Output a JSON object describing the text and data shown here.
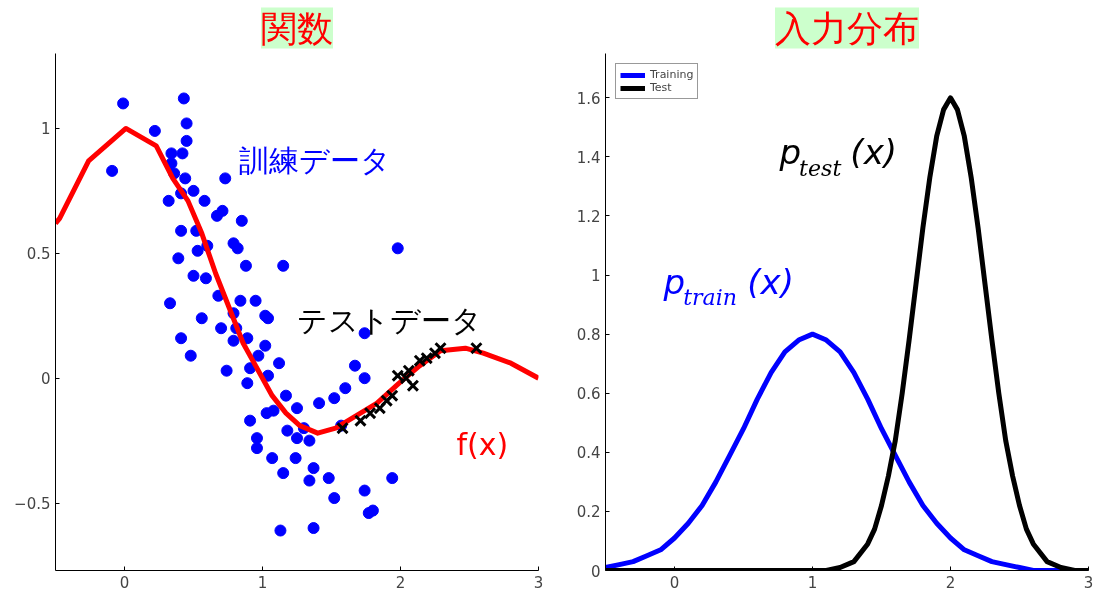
{
  "chart_data": [
    {
      "type": "scatter",
      "title": "関数",
      "xlim": [
        -0.5,
        3
      ],
      "ylim": [
        -0.77,
        1.3
      ],
      "xticks": [
        0,
        1,
        2,
        3
      ],
      "yticks": [
        -0.5,
        0,
        0.5,
        1
      ],
      "grid": false,
      "legend": false,
      "series": [
        {
          "name": "訓練データ",
          "type": "scatter",
          "marker": "circle",
          "color": "#0000ff",
          "x": [
            -0.01,
            -0.09,
            0.43,
            0.22,
            0.45,
            0.45,
            0.34,
            0.42,
            0.34,
            0.36,
            0.44,
            0.73,
            0.5,
            0.32,
            0.41,
            0.58,
            0.67,
            0.71,
            0.85,
            0.52,
            0.41,
            0.79,
            0.82,
            0.53,
            0.6,
            0.39,
            0.88,
            1.15,
            1.98,
            0.5,
            0.59,
            0.33,
            0.68,
            0.84,
            0.95,
            1.02,
            1.04,
            0.56,
            0.79,
            0.7,
            0.81,
            0.41,
            0.79,
            0.89,
            1.74,
            0.48,
            1.02,
            0.97,
            0.74,
            0.91,
            1.12,
            1.04,
            1.67,
            0.89,
            1.74,
            1.17,
            1.6,
            1.52,
            1.41,
            1.25,
            1.03,
            1.08,
            0.91,
            1.18,
            1.3,
            1.25,
            1.34,
            0.96,
            0.96,
            1.07,
            1.24,
            1.37,
            1.15,
            1.34,
            1.48,
            1.94,
            1.74,
            1.52,
            1.8,
            1.77,
            1.13,
            1.37,
            1.57
          ],
          "values": [
            1.1,
            0.83,
            1.12,
            0.99,
            1.02,
            0.95,
            0.9,
            0.9,
            0.86,
            0.82,
            0.8,
            0.8,
            0.75,
            0.71,
            0.74,
            0.71,
            0.65,
            0.67,
            0.63,
            0.59,
            0.59,
            0.54,
            0.52,
            0.51,
            0.53,
            0.48,
            0.45,
            0.45,
            0.52,
            0.41,
            0.4,
            0.3,
            0.33,
            0.31,
            0.31,
            0.25,
            0.24,
            0.24,
            0.26,
            0.2,
            0.2,
            0.16,
            0.15,
            0.16,
            0.18,
            0.09,
            0.13,
            0.09,
            0.03,
            0.04,
            0.06,
            0.01,
            0.05,
            -0.02,
            0.0,
            -0.07,
            -0.04,
            -0.08,
            -0.1,
            -0.12,
            -0.14,
            -0.13,
            -0.17,
            -0.21,
            -0.2,
            -0.24,
            -0.25,
            -0.24,
            -0.28,
            -0.32,
            -0.32,
            -0.36,
            -0.38,
            -0.41,
            -0.4,
            -0.4,
            -0.45,
            -0.48,
            -0.53,
            -0.54,
            -0.61,
            -0.6,
            -0.19
          ]
        },
        {
          "name": "f(x)",
          "type": "line",
          "line_style": "solid",
          "marker": "none",
          "color": "#ff0000",
          "x": [
            -0.5,
            -0.47,
            -0.26,
            0.01,
            0.23,
            0.35,
            0.46,
            0.56,
            0.66,
            0.76,
            0.86,
            0.97,
            1.07,
            1.17,
            1.27,
            1.4,
            1.53,
            1.68,
            1.83,
            1.99,
            2.14,
            2.29,
            2.47,
            2.6,
            2.8,
            3.0
          ],
          "values": [
            0.62,
            0.64,
            0.87,
            1.0,
            0.93,
            0.8,
            0.71,
            0.58,
            0.42,
            0.28,
            0.14,
            0.03,
            -0.07,
            -0.14,
            -0.19,
            -0.22,
            -0.2,
            -0.15,
            -0.1,
            -0.02,
            0.05,
            0.11,
            0.12,
            0.1,
            0.06,
            0.0
          ]
        },
        {
          "name": "テストデータ",
          "type": "scatter",
          "marker": "cross",
          "color": "#000000",
          "x": [
            1.58,
            1.71,
            1.78,
            1.85,
            1.9,
            1.94,
            1.98,
            2.0,
            2.04,
            2.06,
            2.09,
            2.14,
            2.19,
            2.25,
            2.29,
            2.55
          ],
          "values": [
            -0.2,
            -0.17,
            -0.14,
            -0.12,
            -0.09,
            -0.07,
            0.01,
            null,
            0.0,
            0.03,
            -0.03,
            0.07,
            0.08,
            0.1,
            0.12,
            0.12
          ]
        }
      ]
    },
    {
      "type": "line",
      "title": "入力分布",
      "xlim": [
        -0.5,
        3
      ],
      "ylim": [
        0,
        1.75
      ],
      "xticks": [
        0,
        1,
        2,
        3
      ],
      "yticks": [
        0,
        0.2,
        0.4,
        0.6,
        0.8,
        1,
        1.2,
        1.4,
        1.6
      ],
      "grid": false,
      "legend": "top left",
      "line_style": "solid",
      "marker": "none",
      "annotations": [
        "p$_{train}$(x)",
        "p$_{test}$(x)"
      ],
      "series": [
        {
          "name": "Training",
          "color": "#0000ff",
          "x": [
            -0.5,
            -0.4,
            -0.3,
            -0.2,
            -0.1,
            0,
            0.1,
            0.2,
            0.3,
            0.4,
            0.5,
            0.6,
            0.7,
            0.8,
            0.9,
            1.0,
            1.1,
            1.2,
            1.3,
            1.4,
            1.5,
            1.6,
            1.7,
            1.8,
            1.9,
            2.0,
            2.1,
            2.2,
            2.3,
            2.4,
            2.5,
            2.6,
            2.7,
            2.8,
            2.9,
            3.0
          ],
          "values": [
            0.01,
            0.02,
            0.03,
            0.05,
            0.07,
            0.11,
            0.16,
            0.22,
            0.3,
            0.39,
            0.48,
            0.58,
            0.67,
            0.74,
            0.78,
            0.8,
            0.78,
            0.74,
            0.67,
            0.58,
            0.48,
            0.39,
            0.3,
            0.22,
            0.16,
            0.11,
            0.07,
            0.05,
            0.03,
            0.02,
            0.01,
            0.0,
            0.0,
            0.0,
            0.0,
            0.0
          ]
        },
        {
          "name": "Test",
          "color": "#000000",
          "x": [
            -0.5,
            0,
            0.5,
            1.0,
            1.1,
            1.2,
            1.3,
            1.4,
            1.45,
            1.5,
            1.55,
            1.6,
            1.65,
            1.7,
            1.75,
            1.8,
            1.85,
            1.9,
            1.95,
            2.0,
            2.05,
            2.1,
            2.15,
            2.2,
            2.25,
            2.3,
            2.35,
            2.4,
            2.45,
            2.5,
            2.55,
            2.6,
            2.7,
            2.8,
            2.9,
            3.0
          ],
          "values": [
            0,
            0,
            0,
            0,
            0.0,
            0.01,
            0.03,
            0.09,
            0.14,
            0.22,
            0.32,
            0.44,
            0.6,
            0.78,
            0.97,
            1.16,
            1.33,
            1.47,
            1.56,
            1.6,
            1.56,
            1.47,
            1.33,
            1.16,
            0.97,
            0.78,
            0.6,
            0.44,
            0.32,
            0.22,
            0.14,
            0.09,
            0.03,
            0.01,
            0.0,
            0
          ]
        }
      ]
    }
  ]
}
